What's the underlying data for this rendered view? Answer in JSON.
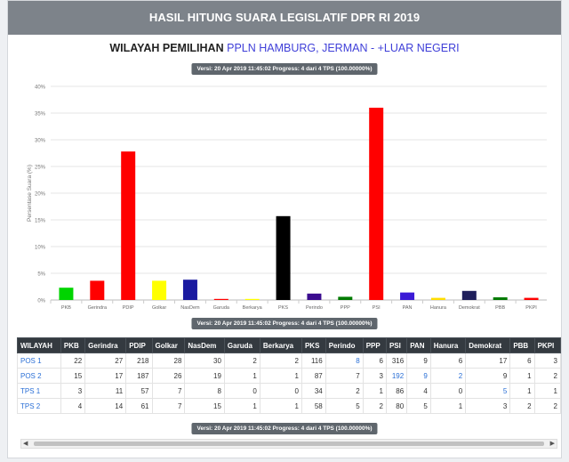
{
  "header": {
    "title": "HASIL HITUNG SUARA LEGISLATIF DPR RI 2019"
  },
  "subtitle": {
    "label": "WILAYAH PEMILIHAN",
    "region": "PPLN HAMBURG, JERMAN - +LUAR NEGERI"
  },
  "version_text": "Versi: 20 Apr 2019 11:45:02 Progress: 4 dari 4 TPS (100.00000%)",
  "chart_data": {
    "type": "bar",
    "ylabel": "Persentase Suara (%)",
    "ylim": [
      0,
      40
    ],
    "yticks": [
      "0%",
      "5%",
      "10%",
      "15%",
      "20%",
      "25%",
      "30%",
      "35%",
      "40%"
    ],
    "grid": true,
    "categories": [
      "PKB",
      "Gerindra",
      "PDIP",
      "Golkar",
      "NasDem",
      "Garuda",
      "Berkarya",
      "PKS",
      "Perindo",
      "PPP",
      "PSI",
      "PAN",
      "Hanura",
      "Demokrat",
      "PBB",
      "PKPI"
    ],
    "values": [
      2.3,
      3.6,
      27.8,
      3.6,
      3.8,
      0.2,
      0.2,
      15.7,
      1.2,
      0.6,
      36.0,
      1.4,
      0.4,
      1.7,
      0.5,
      0.4
    ],
    "colors": [
      "#00d400",
      "#ff0000",
      "#ff0000",
      "#ffff00",
      "#1a1aa0",
      "#ff0000",
      "#ffff00",
      "#000000",
      "#3b0c8f",
      "#007a00",
      "#ff0000",
      "#3b1ad6",
      "#ffdd00",
      "#1f1f5c",
      "#007a00",
      "#ff0000"
    ]
  },
  "table": {
    "headers": [
      "WILAYAH",
      "PKB",
      "Gerindra",
      "PDIP",
      "Golkar",
      "NasDem",
      "Garuda",
      "Berkarya",
      "PKS",
      "Perindo",
      "PPP",
      "PSI",
      "PAN",
      "Hanura",
      "Demokrat",
      "PBB",
      "PKPI"
    ],
    "rows": [
      [
        "POS 1",
        "22",
        "27",
        "218",
        "28",
        "30",
        "2",
        "2",
        "116",
        "8",
        "6",
        "316",
        "9",
        "6",
        "17",
        "6",
        "3"
      ],
      [
        "POS 2",
        "15",
        "17",
        "187",
        "26",
        "19",
        "1",
        "1",
        "87",
        "7",
        "3",
        "192",
        "9",
        "2",
        "9",
        "1",
        "2"
      ],
      [
        "TPS 1",
        "3",
        "11",
        "57",
        "7",
        "8",
        "0",
        "0",
        "34",
        "2",
        "1",
        "86",
        "4",
        "0",
        "5",
        "1",
        "1"
      ],
      [
        "TPS 2",
        "4",
        "14",
        "61",
        "7",
        "15",
        "1",
        "1",
        "58",
        "5",
        "2",
        "80",
        "5",
        "1",
        "3",
        "2",
        "2"
      ]
    ]
  }
}
